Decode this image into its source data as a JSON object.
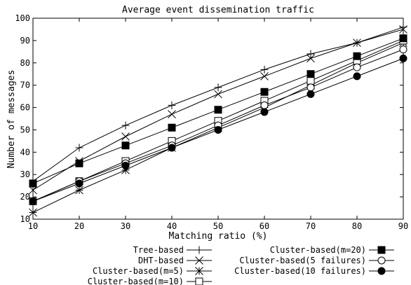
{
  "chart_data": {
    "type": "line",
    "title": "Average event dissemination traffic",
    "xlabel": "Matching ratio (%)",
    "ylabel": "Number of messages",
    "xlim": [
      10,
      90
    ],
    "ylim": [
      10,
      100
    ],
    "xticks": [
      "10",
      "20",
      "30",
      "40",
      "50",
      "60",
      "70",
      "80",
      "90"
    ],
    "yticks": [
      "10",
      "20",
      "30",
      "40",
      "50",
      "60",
      "70",
      "80",
      "90",
      "100"
    ],
    "grid": false,
    "legend_position": "bottom",
    "x": [
      10,
      20,
      30,
      40,
      50,
      60,
      70,
      80,
      90
    ],
    "series": [
      {
        "name": "Tree-based",
        "marker": "plus",
        "values": [
          27,
          42,
          52,
          61,
          69,
          77,
          84,
          89,
          96
        ]
      },
      {
        "name": "DHT-based",
        "marker": "cross",
        "values": [
          23,
          36,
          47,
          57,
          66,
          74,
          82,
          89,
          95
        ]
      },
      {
        "name": "Cluster-based(m=5)",
        "marker": "star",
        "values": [
          13,
          23,
          32,
          42,
          51,
          60,
          70,
          80,
          89
        ]
      },
      {
        "name": "Cluster-based(m=10)",
        "marker": "square-open",
        "values": [
          18,
          27,
          36,
          45,
          54,
          63,
          72,
          81,
          90
        ]
      },
      {
        "name": "Cluster-based(m=20)",
        "marker": "square-filled",
        "values": [
          26,
          35,
          43,
          51,
          59,
          67,
          75,
          83,
          91
        ]
      },
      {
        "name": "Cluster-based(5 failures)",
        "marker": "circle-open",
        "values": [
          18,
          27,
          35,
          43,
          52,
          61,
          69,
          78,
          86
        ]
      },
      {
        "name": "Cluster-based(10 failures)",
        "marker": "circle-filled",
        "values": [
          18,
          26,
          34,
          42,
          50,
          58,
          66,
          74,
          82
        ]
      }
    ]
  }
}
